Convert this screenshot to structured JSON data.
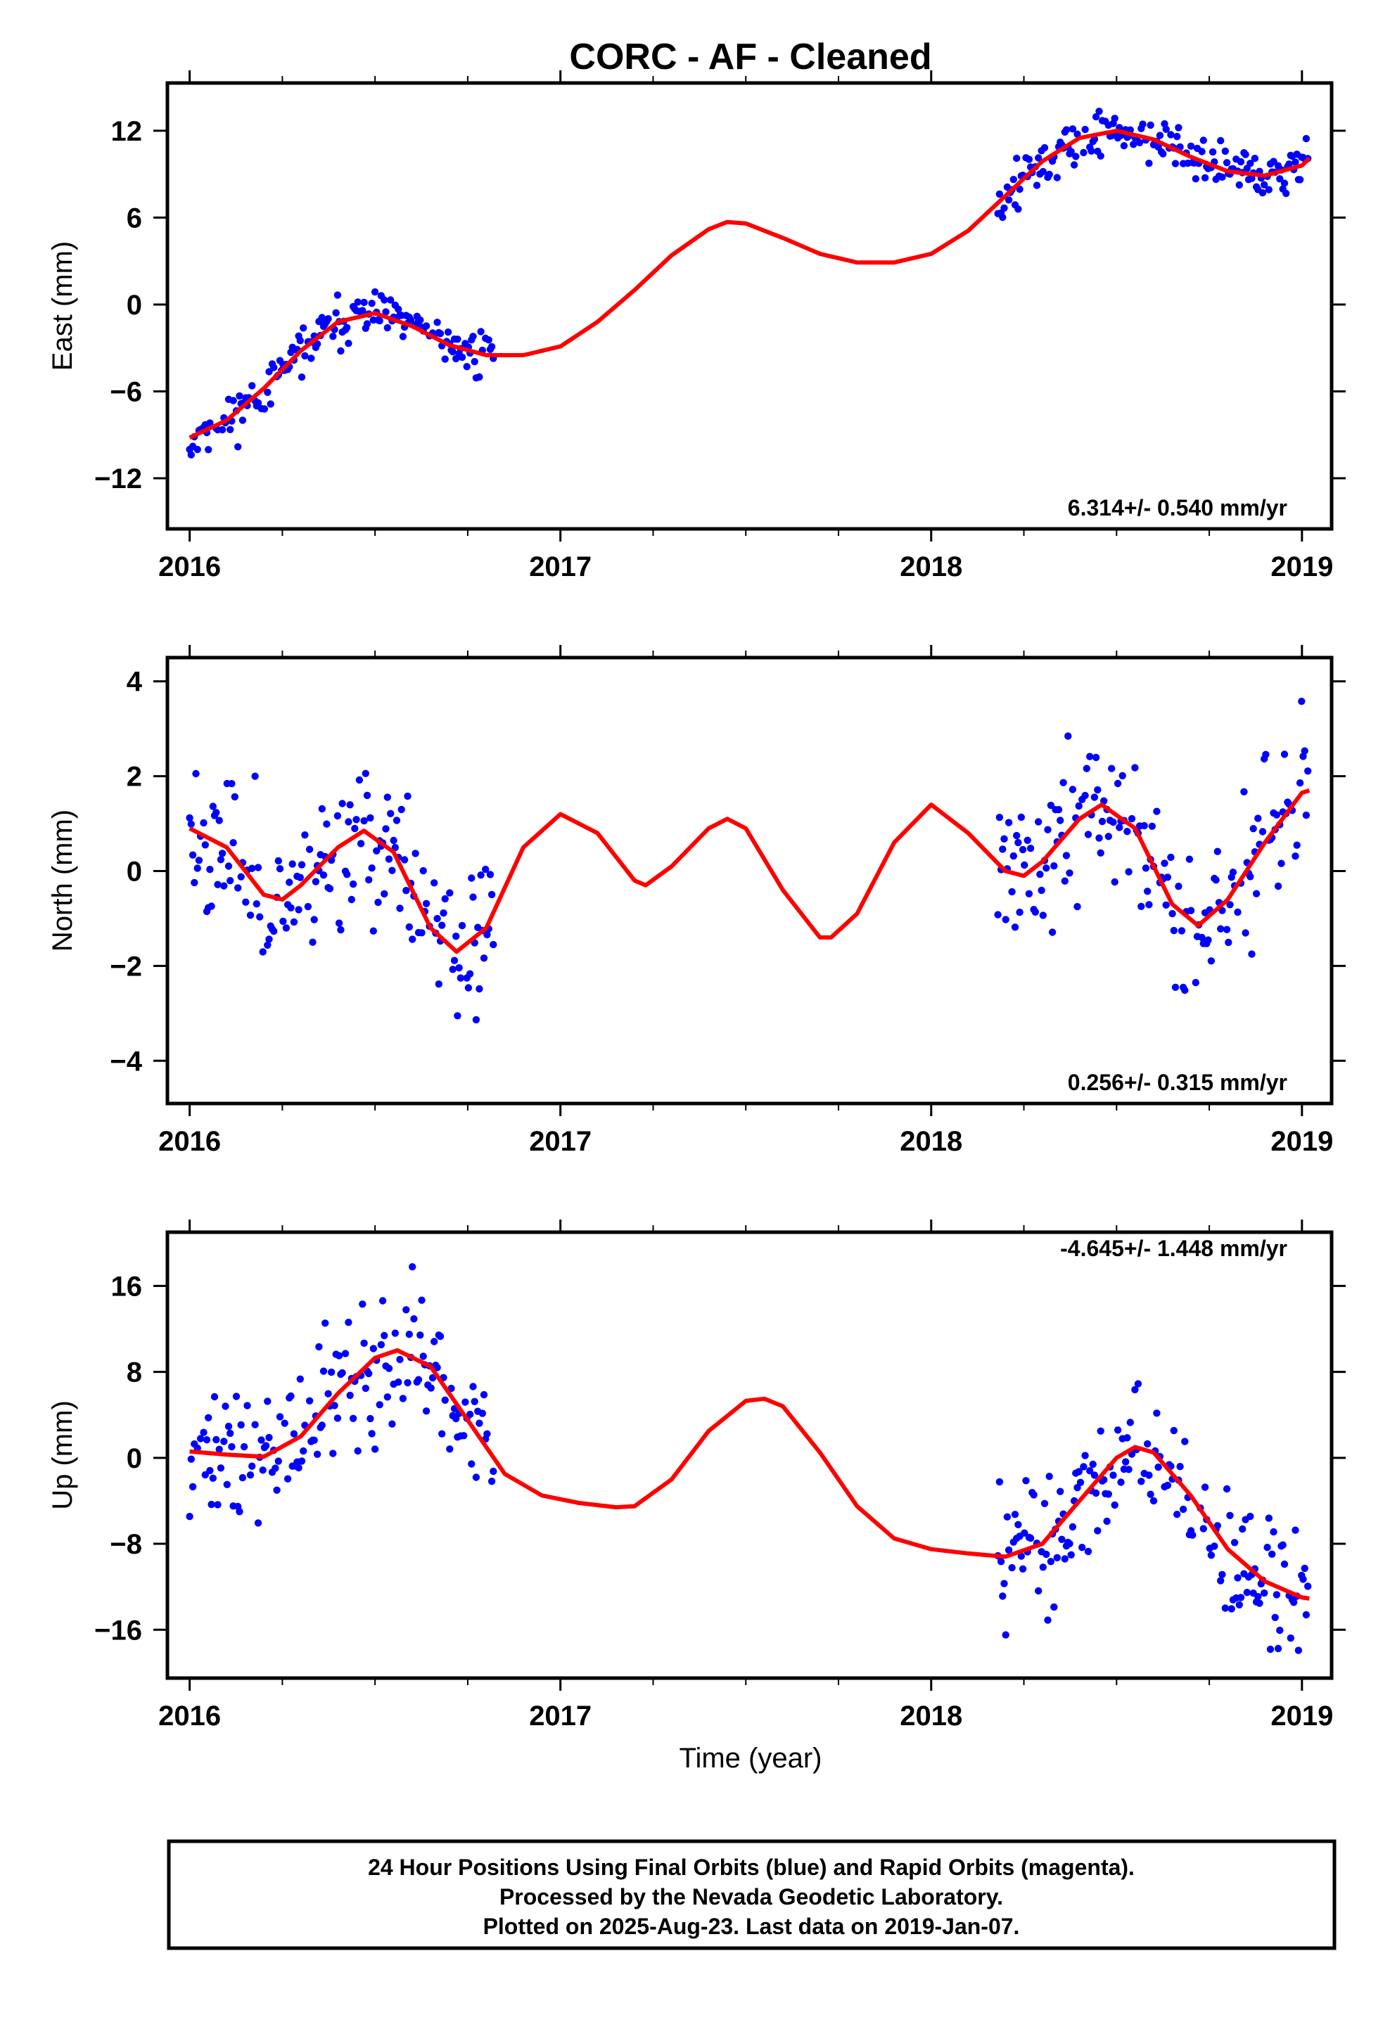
{
  "title": "CORC  - AF - Cleaned",
  "xlabel": "Time (year)",
  "footer": [
    "24 Hour Positions Using Final Orbits (blue) and Rapid Orbits (magenta).",
    "Processed by the Nevada Geodetic Laboratory.",
    "Plotted on 2025-Aug-23. Last data on 2019-Jan-07."
  ],
  "colors": {
    "points": "#0000ff",
    "fit": "#ff0000",
    "frame": "#000000"
  },
  "chart_data": [
    {
      "type": "scatter",
      "ylabel": "East (mm)",
      "rate_label": "6.314+/- 0.540 mm/yr",
      "xlim": [
        2015.94,
        2019.08
      ],
      "ylim": [
        -15.5,
        15.3
      ],
      "xticks": [
        2016,
        2017,
        2018,
        2019
      ],
      "xtick_labels": [
        "2016",
        "2017",
        "2018",
        "2019"
      ],
      "yticks": [
        -12,
        -6,
        0,
        6,
        12
      ],
      "ytick_labels": [
        "−12",
        "−6",
        "0",
        "6",
        "12"
      ],
      "segments": [
        [
          2016.0,
          2016.82
        ],
        [
          2018.18,
          2019.02
        ]
      ],
      "trend": {
        "slope": 6.314,
        "intercept": -4.7
      },
      "annual": {
        "cos": -3.0,
        "sin": 0.4
      },
      "semiannual": {
        "cos": 0.3,
        "sin": -0.5
      },
      "offset_events": [
        {
          "t": 2018.18,
          "step": 3.4
        }
      ],
      "fit": [
        [
          2016.0,
          -9.2
        ],
        [
          2016.1,
          -8.0
        ],
        [
          2016.2,
          -5.8
        ],
        [
          2016.3,
          -3.2
        ],
        [
          2016.4,
          -1.2
        ],
        [
          2016.5,
          -0.6
        ],
        [
          2016.6,
          -1.5
        ],
        [
          2016.7,
          -2.8
        ],
        [
          2016.8,
          -3.5
        ],
        [
          2016.9,
          -3.5
        ],
        [
          2017.0,
          -2.9
        ],
        [
          2017.1,
          -1.2
        ],
        [
          2017.2,
          1.0
        ],
        [
          2017.3,
          3.4
        ],
        [
          2017.4,
          5.2
        ],
        [
          2017.45,
          5.7
        ],
        [
          2017.5,
          5.6
        ],
        [
          2017.6,
          4.6
        ],
        [
          2017.7,
          3.5
        ],
        [
          2017.8,
          2.9
        ],
        [
          2017.9,
          2.9
        ],
        [
          2018.0,
          3.5
        ],
        [
          2018.1,
          5.1
        ],
        [
          2018.2,
          7.5
        ],
        [
          2018.3,
          9.9
        ],
        [
          2018.4,
          11.5
        ],
        [
          2018.5,
          12.0
        ],
        [
          2018.6,
          11.4
        ],
        [
          2018.7,
          10.2
        ],
        [
          2018.8,
          9.2
        ],
        [
          2018.9,
          8.9
        ],
        [
          2019.0,
          9.6
        ],
        [
          2019.02,
          10.1
        ]
      ],
      "noise": 1.1,
      "seed": 11
    },
    {
      "type": "scatter",
      "ylabel": "North (mm)",
      "rate_label": "0.256+/- 0.315 mm/yr",
      "xlim": [
        2015.94,
        2019.08
      ],
      "ylim": [
        -4.9,
        4.5
      ],
      "xticks": [
        2016,
        2017,
        2018,
        2019
      ],
      "xtick_labels": [
        "2016",
        "2017",
        "2018",
        "2019"
      ],
      "yticks": [
        -4,
        -2,
        0,
        2,
        4
      ],
      "ytick_labels": [
        "−4",
        "−2",
        "0",
        "2",
        "4"
      ],
      "segments": [
        [
          2016.0,
          2016.82
        ],
        [
          2018.18,
          2019.02
        ]
      ],
      "fit": [
        [
          2016.0,
          0.9
        ],
        [
          2016.1,
          0.5
        ],
        [
          2016.2,
          -0.5
        ],
        [
          2016.25,
          -0.6
        ],
        [
          2016.3,
          -0.3
        ],
        [
          2016.4,
          0.5
        ],
        [
          2016.47,
          0.85
        ],
        [
          2016.55,
          0.4
        ],
        [
          2016.65,
          -1.2
        ],
        [
          2016.72,
          -1.7
        ],
        [
          2016.8,
          -1.2
        ],
        [
          2016.9,
          0.5
        ],
        [
          2017.0,
          1.2
        ],
        [
          2017.1,
          0.8
        ],
        [
          2017.2,
          -0.2
        ],
        [
          2017.23,
          -0.3
        ],
        [
          2017.3,
          0.1
        ],
        [
          2017.4,
          0.9
        ],
        [
          2017.45,
          1.1
        ],
        [
          2017.5,
          0.9
        ],
        [
          2017.6,
          -0.4
        ],
        [
          2017.7,
          -1.4
        ],
        [
          2017.73,
          -1.4
        ],
        [
          2017.8,
          -0.9
        ],
        [
          2017.9,
          0.6
        ],
        [
          2018.0,
          1.4
        ],
        [
          2018.1,
          0.8
        ],
        [
          2018.2,
          0.0
        ],
        [
          2018.25,
          -0.1
        ],
        [
          2018.3,
          0.2
        ],
        [
          2018.4,
          1.1
        ],
        [
          2018.46,
          1.4
        ],
        [
          2018.55,
          0.9
        ],
        [
          2018.65,
          -0.7
        ],
        [
          2018.72,
          -1.15
        ],
        [
          2018.8,
          -0.6
        ],
        [
          2018.9,
          0.6
        ],
        [
          2019.0,
          1.65
        ],
        [
          2019.02,
          1.7
        ]
      ],
      "noise": 1.05,
      "seed": 23
    },
    {
      "type": "scatter",
      "ylabel": "Up (mm)",
      "rate_label": "-4.645+/- 1.448 mm/yr",
      "xlim": [
        2015.94,
        2019.08
      ],
      "ylim": [
        -20.5,
        21.0
      ],
      "xticks": [
        2016,
        2017,
        2018,
        2019
      ],
      "xtick_labels": [
        "2016",
        "2017",
        "2018",
        "2019"
      ],
      "yticks": [
        -16,
        -8,
        0,
        8,
        16
      ],
      "ytick_labels": [
        "−16",
        "−8",
        "0",
        "8",
        "16"
      ],
      "segments": [
        [
          2016.0,
          2016.82
        ],
        [
          2018.18,
          2019.02
        ]
      ],
      "fit": [
        [
          2016.0,
          0.6
        ],
        [
          2016.1,
          0.3
        ],
        [
          2016.2,
          0.1
        ],
        [
          2016.3,
          2.0
        ],
        [
          2016.4,
          6.0
        ],
        [
          2016.5,
          9.3
        ],
        [
          2016.56,
          10.0
        ],
        [
          2016.65,
          8.5
        ],
        [
          2016.75,
          3.5
        ],
        [
          2016.85,
          -1.5
        ],
        [
          2016.95,
          -3.5
        ],
        [
          2017.05,
          -4.2
        ],
        [
          2017.15,
          -4.6
        ],
        [
          2017.2,
          -4.5
        ],
        [
          2017.3,
          -2.0
        ],
        [
          2017.4,
          2.5
        ],
        [
          2017.5,
          5.3
        ],
        [
          2017.55,
          5.5
        ],
        [
          2017.6,
          4.8
        ],
        [
          2017.7,
          0.5
        ],
        [
          2017.8,
          -4.5
        ],
        [
          2017.9,
          -7.5
        ],
        [
          2018.0,
          -8.5
        ],
        [
          2018.1,
          -8.9
        ],
        [
          2018.2,
          -9.2
        ],
        [
          2018.3,
          -8.0
        ],
        [
          2018.4,
          -4.0
        ],
        [
          2018.5,
          0.0
        ],
        [
          2018.55,
          1.0
        ],
        [
          2018.6,
          0.5
        ],
        [
          2018.7,
          -3.5
        ],
        [
          2018.8,
          -8.5
        ],
        [
          2018.9,
          -11.5
        ],
        [
          2019.0,
          -13.0
        ],
        [
          2019.02,
          -13.1
        ]
      ],
      "noise": 4.2,
      "seed": 37
    }
  ]
}
